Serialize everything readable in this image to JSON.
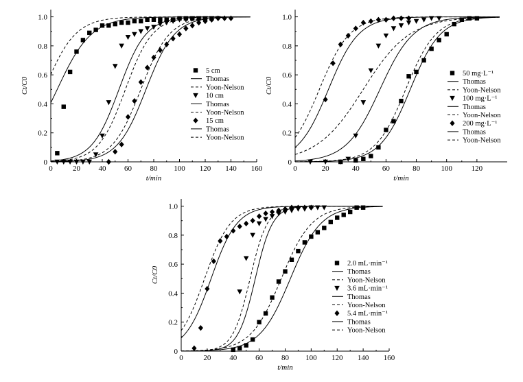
{
  "chart_data": [
    {
      "type": "line",
      "id": "a",
      "xlabel": "t/min",
      "ylabel": "Ct/C0",
      "xlim": [
        0,
        160
      ],
      "ylim": [
        0,
        1.05
      ],
      "xticks": [
        0,
        20,
        40,
        60,
        80,
        100,
        120,
        140,
        160
      ],
      "yticks": [
        0,
        0.2,
        0.4,
        0.6,
        0.8,
        1.0
      ],
      "ytick_labels": [
        "0",
        "0.2",
        "0.4",
        "0.6",
        "0.8",
        "1.0"
      ],
      "legend_position": "right",
      "series": [
        {
          "name": "5 cm",
          "marker": "square",
          "x": [
            5,
            10,
            15,
            20,
            25,
            30,
            35,
            40,
            45,
            50,
            55,
            60,
            65,
            70,
            75,
            80,
            85,
            90,
            95,
            100,
            105,
            110,
            115,
            120,
            125
          ],
          "y": [
            0.06,
            0.38,
            0.62,
            0.76,
            0.84,
            0.89,
            0.91,
            0.94,
            0.94,
            0.95,
            0.96,
            0.96,
            0.97,
            0.97,
            0.98,
            0.98,
            0.98,
            0.98,
            0.98,
            0.99,
            0.99,
            0.99,
            0.99,
            0.99,
            0.99
          ],
          "thomas": {
            "t50": 5,
            "k": 0.075
          },
          "yoon_nelson": {
            "t50": -5,
            "k": 0.083
          }
        },
        {
          "name": "10 cm",
          "marker": "triangle-down",
          "x": [
            5,
            10,
            15,
            20,
            25,
            30,
            35,
            40,
            45,
            50,
            55,
            60,
            65,
            70,
            75,
            80,
            85,
            90,
            95,
            100,
            105,
            110,
            115,
            120,
            125,
            130
          ],
          "y": [
            0.0,
            0.0,
            0.0,
            0.0,
            0.0,
            0.0,
            0.05,
            0.18,
            0.41,
            0.66,
            0.8,
            0.86,
            0.88,
            0.9,
            0.92,
            0.93,
            0.95,
            0.96,
            0.97,
            0.98,
            0.98,
            0.99,
            0.99,
            0.99,
            0.99,
            0.99
          ],
          "thomas": {
            "t50": 53,
            "k": 0.095
          },
          "yoon_nelson": {
            "t50": 58,
            "k": 0.095
          }
        },
        {
          "name": "15 cm",
          "marker": "diamond",
          "x": [
            45,
            50,
            55,
            60,
            65,
            70,
            75,
            80,
            85,
            90,
            95,
            100,
            105,
            110,
            115,
            120,
            125,
            130,
            135,
            140
          ],
          "y": [
            0.0,
            0.07,
            0.12,
            0.31,
            0.42,
            0.55,
            0.65,
            0.72,
            0.77,
            0.81,
            0.85,
            0.88,
            0.92,
            0.94,
            0.96,
            0.97,
            0.98,
            0.99,
            0.99,
            0.99
          ],
          "thomas": {
            "t50": 74,
            "k": 0.09
          },
          "yoon_nelson": {
            "t50": 70,
            "k": 0.09
          }
        }
      ]
    },
    {
      "type": "line",
      "id": "b",
      "xlabel": "t/min",
      "ylabel": "Ct/C0",
      "xlim": [
        0,
        140
      ],
      "ylim": [
        0,
        1.05
      ],
      "xticks": [
        0,
        20,
        40,
        60,
        80,
        100,
        120
      ],
      "yticks": [
        0,
        0.2,
        0.4,
        0.6,
        0.8,
        1.0
      ],
      "ytick_labels": [
        "0",
        "0.2",
        "0.4",
        "0.6",
        "0.8",
        "1.0"
      ],
      "legend_position": "right",
      "series": [
        {
          "name": "50 mg·L⁻¹",
          "marker": "square",
          "x": [
            30,
            40,
            45,
            50,
            55,
            60,
            65,
            70,
            75,
            80,
            85,
            90,
            95,
            100,
            105,
            110,
            115,
            120
          ],
          "y": [
            0.0,
            0.01,
            0.02,
            0.04,
            0.1,
            0.22,
            0.28,
            0.42,
            0.59,
            0.62,
            0.7,
            0.78,
            0.84,
            0.88,
            0.95,
            0.98,
            0.99,
            0.99
          ],
          "thomas": {
            "t50": 76,
            "k": 0.1
          },
          "yoon_nelson": {
            "t50": 73,
            "k": 0.1
          }
        },
        {
          "name": "100 mg·L⁻¹",
          "marker": "triangle-down",
          "x": [
            10,
            20,
            30,
            35,
            40,
            45,
            50,
            55,
            60,
            65,
            70,
            75,
            80,
            85,
            90,
            95
          ],
          "y": [
            0.0,
            0.0,
            0.0,
            0.02,
            0.18,
            0.41,
            0.63,
            0.8,
            0.87,
            0.92,
            0.94,
            0.96,
            0.97,
            0.98,
            0.99,
            0.99
          ],
          "thomas": {
            "t50": 56,
            "k": 0.09
          },
          "yoon_nelson": {
            "t50": 45,
            "k": 0.065
          }
        },
        {
          "name": "200 mg·L⁻¹",
          "marker": "diamond",
          "x": [
            20,
            25,
            30,
            35,
            40,
            45,
            50,
            55,
            60,
            65,
            70,
            75
          ],
          "y": [
            0.43,
            0.68,
            0.81,
            0.87,
            0.92,
            0.96,
            0.97,
            0.98,
            0.98,
            0.99,
            0.99,
            0.99
          ],
          "thomas": {
            "t50": 22,
            "k": 0.1
          },
          "yoon_nelson": {
            "t50": 16,
            "k": 0.1
          }
        }
      ]
    },
    {
      "type": "line",
      "id": "c",
      "xlabel": "t/min",
      "ylabel": "Ct/C0",
      "xlim": [
        0,
        160
      ],
      "ylim": [
        0,
        1.05
      ],
      "xticks": [
        0,
        20,
        40,
        60,
        80,
        100,
        120,
        140,
        160
      ],
      "yticks": [
        0,
        0.2,
        0.4,
        0.6,
        0.8,
        1.0
      ],
      "ytick_labels": [
        "0",
        "0.2",
        "0.4",
        "0.6",
        "0.8",
        "1.0"
      ],
      "legend_position": "right",
      "series": [
        {
          "name": "2.0 mL·min⁻¹",
          "marker": "square",
          "x": [
            40,
            45,
            50,
            55,
            60,
            65,
            70,
            75,
            80,
            85,
            90,
            95,
            100,
            105,
            110,
            115,
            120,
            125,
            130,
            135,
            140
          ],
          "y": [
            0.01,
            0.02,
            0.04,
            0.08,
            0.2,
            0.26,
            0.37,
            0.48,
            0.55,
            0.63,
            0.69,
            0.75,
            0.79,
            0.82,
            0.85,
            0.89,
            0.92,
            0.94,
            0.96,
            0.99,
            0.99
          ],
          "thomas": {
            "t50": 84,
            "k": 0.085
          },
          "yoon_nelson": {
            "t50": 77,
            "k": 0.085
          }
        },
        {
          "name": "3.6 mL·min⁻¹",
          "marker": "triangle-down",
          "x": [
            45,
            50,
            55,
            60,
            65,
            70,
            75,
            80,
            85,
            90,
            95,
            100,
            105,
            110
          ],
          "y": [
            0.41,
            0.64,
            0.8,
            0.88,
            0.91,
            0.93,
            0.95,
            0.96,
            0.97,
            0.98,
            0.98,
            0.99,
            0.99,
            0.99
          ],
          "thomas": {
            "t50": 57,
            "k": 0.15
          },
          "yoon_nelson": {
            "t50": 53,
            "k": 0.15
          }
        },
        {
          "name": "5.4 mL·min⁻¹",
          "marker": "diamond",
          "x": [
            10,
            15,
            20,
            25,
            30,
            35,
            40,
            45,
            50,
            55,
            60,
            65,
            70,
            75,
            80,
            85,
            90,
            95,
            100
          ],
          "y": [
            0.02,
            0.16,
            0.43,
            0.62,
            0.76,
            0.79,
            0.83,
            0.86,
            0.88,
            0.9,
            0.93,
            0.95,
            0.96,
            0.97,
            0.98,
            0.99,
            0.99,
            0.99,
            0.99
          ],
          "thomas": {
            "t50": 23,
            "k": 0.1
          },
          "yoon_nelson": {
            "t50": 18,
            "k": 0.1
          }
        }
      ]
    }
  ],
  "legend_model_labels": {
    "thomas": "Thomas",
    "yoon_nelson": "Yoon-Nelson"
  }
}
